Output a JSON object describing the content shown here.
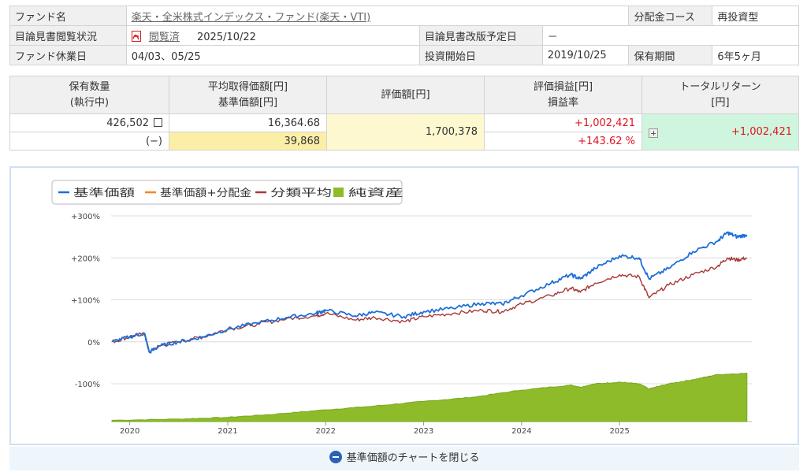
{
  "info": {
    "fund_name_label": "ファンド名",
    "fund_name_value": "楽天・全米株式インデックス・ファンド(楽天・VTI)",
    "dist_course_label": "分配金コース",
    "dist_course_value": "再投資型",
    "prospectus_label": "目論見書閲覧状況",
    "prospectus_status": "閲覧済",
    "prospectus_date": "2025/10/22",
    "revision_label": "目論見書改版予定日",
    "revision_value": "－",
    "holiday_label": "ファンド休業日",
    "holiday_value": "04/03、05/25",
    "start_label": "投資開始日",
    "start_value": "2019/10/25",
    "period_label": "保有期間",
    "period_value": "6年5ヶ月"
  },
  "holdings": {
    "col1_line1": "保有数量",
    "col1_line2": "(執行中)",
    "col2_line1": "平均取得価額[円]",
    "col2_line2": "基準価額[円]",
    "col3": "評価額[円]",
    "col4_line1": "評価損益[円]",
    "col4_line2": "損益率",
    "col5_line1": "トータルリターン",
    "col5_line2": "[円]",
    "quantity": "426,502",
    "pending": "(−)",
    "avg_price": "16,364.68",
    "nav": "39,868",
    "valuation": "1,700,378",
    "pl": "+1,002,421",
    "pl_rate": "+143.62 %",
    "total_return": "+1,002,421"
  },
  "chart_data": {
    "type": "line",
    "legend": [
      "基準価額",
      "基準価額+分配金",
      "分類平均",
      "純資産"
    ],
    "legend_colors": [
      "#1f6fd8",
      "#f08a24",
      "#a83838",
      "#8dbb2a"
    ],
    "y_ticks": [
      "+300%",
      "+200%",
      "+100%",
      "0%",
      "-100%"
    ],
    "y_values": [
      300,
      200,
      100,
      0,
      -100
    ],
    "x_ticks": [
      "2020",
      "2021",
      "2022",
      "2023",
      "2024",
      "2025"
    ],
    "x_tick_values": [
      2020.0,
      2021.0,
      2022.0,
      2023.0,
      2024.0,
      2025.0
    ],
    "x_range": [
      2019.81,
      2026.35
    ],
    "y_range": [
      -190,
      300
    ],
    "series": [
      {
        "name": "基準価額",
        "x": [
          2019.82,
          2020.0,
          2020.15,
          2020.2,
          2020.3,
          2020.5,
          2020.75,
          2021.0,
          2021.3,
          2021.6,
          2021.9,
          2022.0,
          2022.3,
          2022.5,
          2022.8,
          2023.0,
          2023.3,
          2023.6,
          2023.8,
          2024.0,
          2024.3,
          2024.5,
          2024.6,
          2024.75,
          2025.0,
          2025.2,
          2025.3,
          2025.5,
          2025.75,
          2026.0,
          2026.1,
          2026.2,
          2026.3
        ],
        "y": [
          0,
          12,
          20,
          -25,
          -10,
          0,
          12,
          30,
          45,
          58,
          68,
          75,
          62,
          70,
          60,
          72,
          80,
          92,
          90,
          110,
          140,
          160,
          150,
          175,
          205,
          200,
          150,
          175,
          215,
          240,
          260,
          250,
          255
        ]
      },
      {
        "name": "分類平均",
        "x": [
          2019.82,
          2020.0,
          2020.15,
          2020.2,
          2020.3,
          2020.5,
          2020.75,
          2021.0,
          2021.3,
          2021.6,
          2021.9,
          2022.0,
          2022.3,
          2022.5,
          2022.8,
          2023.0,
          2023.3,
          2023.6,
          2023.8,
          2024.0,
          2024.3,
          2024.5,
          2024.6,
          2024.75,
          2025.0,
          2025.2,
          2025.3,
          2025.5,
          2025.75,
          2026.0,
          2026.1,
          2026.2,
          2026.3
        ],
        "y": [
          0,
          12,
          20,
          -25,
          -10,
          0,
          12,
          30,
          42,
          55,
          62,
          68,
          52,
          58,
          48,
          60,
          68,
          75,
          72,
          90,
          110,
          128,
          118,
          140,
          160,
          155,
          105,
          135,
          160,
          180,
          200,
          195,
          200
        ]
      },
      {
        "name": "純資産",
        "x": [
          2019.82,
          2020.5,
          2021.0,
          2021.5,
          2022.0,
          2022.5,
          2023.0,
          2023.5,
          2024.0,
          2024.5,
          2024.6,
          2024.75,
          2025.0,
          2025.2,
          2025.3,
          2025.5,
          2025.75,
          2026.0,
          2026.3
        ],
        "y": [
          -187,
          -184,
          -180,
          -172,
          -162,
          -153,
          -142,
          -132,
          -115,
          -103,
          -108,
          -100,
          -96,
          -100,
          -112,
          -100,
          -90,
          -78,
          -75
        ]
      }
    ]
  },
  "close_chart_label": "基準価額のチャートを閉じる"
}
